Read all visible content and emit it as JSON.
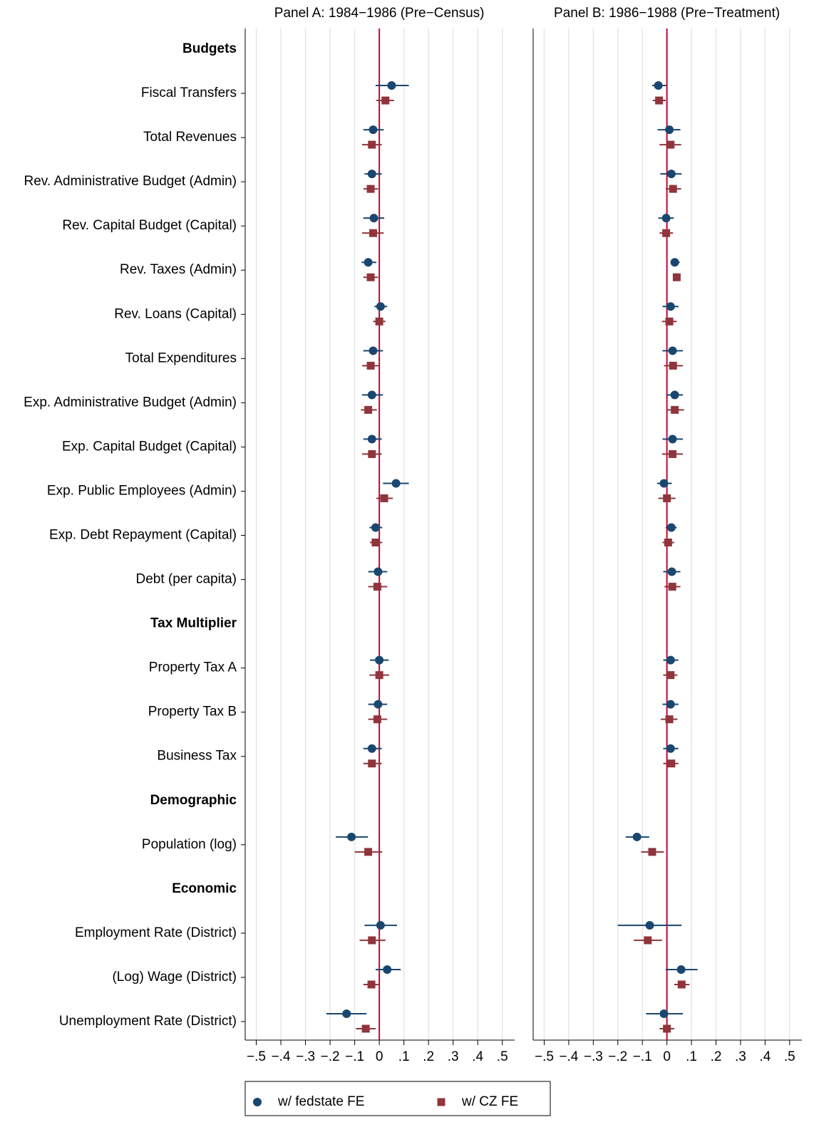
{
  "chart_data": {
    "type": "coefplot",
    "categories": [
      "Budgets",
      "Fiscal Transfers",
      "Total Revenues",
      "Rev. Administrative Budget (Admin)",
      "Rev. Capital Budget (Capital)",
      "Rev. Taxes (Admin)",
      "Rev. Loans (Capital)",
      "Total Expenditures",
      "Exp. Administrative Budget (Admin)",
      "Exp. Capital Budget (Capital)",
      "Exp. Public Employees (Admin)",
      "Exp. Debt Repayment (Capital)",
      "Debt (per capita)",
      "Tax Multiplier",
      "Property Tax A",
      "Property Tax B",
      "Business Tax",
      "Demographic",
      "Population (log)",
      "Economic",
      "Employment Rate (District)",
      "(Log) Wage (District)",
      "Unemployment Rate (District)"
    ],
    "xlim": [
      -0.545,
      0.55
    ],
    "xticks": [
      {
        "value": -0.5,
        "label": "−.5"
      },
      {
        "value": -0.4,
        "label": "−.4"
      },
      {
        "value": -0.3,
        "label": "−.3"
      },
      {
        "value": -0.2,
        "label": "−.2"
      },
      {
        "value": -0.1,
        "label": "−.1"
      },
      0,
      {
        "value": 0.1,
        "label": ".1"
      },
      {
        "value": 0.2,
        "label": ".2"
      },
      {
        "value": 0.3,
        "label": ".3"
      },
      {
        "value": 0.4,
        "label": ".4"
      },
      {
        "value": 0.5,
        "label": ".5"
      }
    ],
    "xline": 0,
    "xline_color": "#c10534",
    "grid": true,
    "legend": "bottom",
    "series": [
      {
        "name": "w/ fedstate FE",
        "color": "#1a476f",
        "marker": "circle"
      },
      {
        "name": "w/ CZ FE",
        "color": "#90353b",
        "marker": "square"
      }
    ],
    "panels": [
      {
        "title": "Panel A: 1984−1986 (Pre−Census)",
        "estimates": [
          {
            "values": [
              null,
              0.05,
              -0.025,
              -0.03,
              -0.022,
              -0.045,
              0.005,
              -0.025,
              -0.03,
              -0.03,
              0.068,
              -0.015,
              -0.005,
              null,
              0,
              -0.005,
              -0.03,
              null,
              -0.113,
              null,
              0.005,
              0.032,
              -0.133
            ],
            "ci": [
              null,
              [
                -0.015,
                0.12
              ],
              [
                -0.065,
                0.018
              ],
              [
                -0.06,
                0.01
              ],
              [
                -0.065,
                0.02
              ],
              [
                -0.072,
                -0.012
              ],
              [
                -0.02,
                0.032
              ],
              [
                -0.065,
                0.015
              ],
              [
                -0.07,
                0.015
              ],
              [
                -0.065,
                0.01
              ],
              [
                0.015,
                0.12
              ],
              [
                -0.04,
                0.012
              ],
              [
                -0.045,
                0.032
              ],
              null,
              [
                -0.038,
                0.038
              ],
              [
                -0.045,
                0.032
              ],
              [
                -0.065,
                0.01
              ],
              null,
              [
                -0.177,
                -0.046
              ],
              null,
              [
                -0.06,
                0.072
              ],
              [
                -0.015,
                0.087
              ],
              [
                -0.215,
                -0.052
              ]
            ]
          },
          {
            "values": [
              null,
              0.025,
              -0.03,
              -0.035,
              -0.025,
              -0.035,
              0,
              -0.035,
              -0.045,
              -0.03,
              0.02,
              -0.015,
              -0.008,
              null,
              0,
              -0.008,
              -0.03,
              null,
              -0.045,
              null,
              -0.03,
              -0.032,
              -0.055
            ],
            "ci": [
              null,
              [
                -0.012,
                0.06
              ],
              [
                -0.07,
                0.01
              ],
              [
                -0.065,
                -0.005
              ],
              [
                -0.07,
                0.018
              ],
              [
                -0.065,
                -0.005
              ],
              [
                -0.025,
                0.025
              ],
              [
                -0.07,
                0.003
              ],
              [
                -0.075,
                -0.01
              ],
              [
                -0.07,
                0.01
              ],
              [
                -0.012,
                0.055
              ],
              [
                -0.038,
                0.012
              ],
              [
                -0.045,
                0.032
              ],
              null,
              [
                -0.04,
                0.04
              ],
              [
                -0.045,
                0.032
              ],
              [
                -0.065,
                0.01
              ],
              null,
              [
                -0.1,
                0.012
              ],
              null,
              [
                -0.08,
                0.025
              ],
              [
                -0.065,
                0
              ],
              [
                -0.095,
                -0.015
              ]
            ]
          }
        ]
      },
      {
        "title": "Panel B: 1986−1988 (Pre−Treatment)",
        "estimates": [
          {
            "values": [
              null,
              -0.035,
              0.01,
              0.018,
              -0.003,
              0.032,
              0.015,
              0.023,
              0.032,
              0.023,
              -0.012,
              0.018,
              0.02,
              null,
              0.015,
              0.015,
              0.015,
              null,
              -0.122,
              null,
              -0.07,
              0.058,
              -0.012
            ],
            "ci": [
              null,
              [
                -0.06,
                -0.003
              ],
              [
                -0.038,
                0.055
              ],
              [
                -0.027,
                0.06
              ],
              [
                -0.035,
                0.028
              ],
              [
                0.015,
                0.052
              ],
              [
                -0.018,
                0.047
              ],
              [
                -0.018,
                0.065
              ],
              [
                -0.003,
                0.065
              ],
              [
                -0.018,
                0.065
              ],
              [
                -0.04,
                0.02
              ],
              [
                -0.005,
                0.04
              ],
              [
                -0.015,
                0.055
              ],
              null,
              [
                -0.015,
                0.047
              ],
              [
                -0.018,
                0.047
              ],
              [
                -0.015,
                0.047
              ],
              null,
              [
                -0.168,
                -0.072
              ],
              null,
              [
                -0.2,
                0.06
              ],
              [
                -0.005,
                0.125
              ],
              [
                -0.085,
                0.065
              ]
            ]
          },
          {
            "values": [
              null,
              -0.032,
              0.015,
              0.025,
              -0.003,
              0.04,
              0.01,
              0.025,
              0.032,
              0.023,
              0,
              0.005,
              0.022,
              null,
              0.015,
              0.01,
              0.018,
              null,
              -0.06,
              null,
              -0.078,
              0.06,
              0
            ],
            "ci": [
              null,
              [
                -0.058,
                -0.005
              ],
              [
                -0.03,
                0.058
              ],
              [
                -0.005,
                0.058
              ],
              [
                -0.03,
                0.025
              ],
              [
                0.028,
                0.052
              ],
              [
                -0.02,
                0.04
              ],
              [
                -0.012,
                0.065
              ],
              [
                -0.003,
                0.07
              ],
              [
                -0.02,
                0.065
              ],
              [
                -0.035,
                0.035
              ],
              [
                -0.018,
                0.03
              ],
              [
                -0.01,
                0.055
              ],
              null,
              [
                -0.015,
                0.043
              ],
              [
                -0.025,
                0.043
              ],
              [
                -0.015,
                0.047
              ],
              null,
              [
                -0.105,
                -0.012
              ],
              null,
              [
                -0.135,
                -0.02
              ],
              [
                0.03,
                0.092
              ],
              [
                -0.03,
                0.03
              ]
            ]
          }
        ]
      }
    ]
  }
}
